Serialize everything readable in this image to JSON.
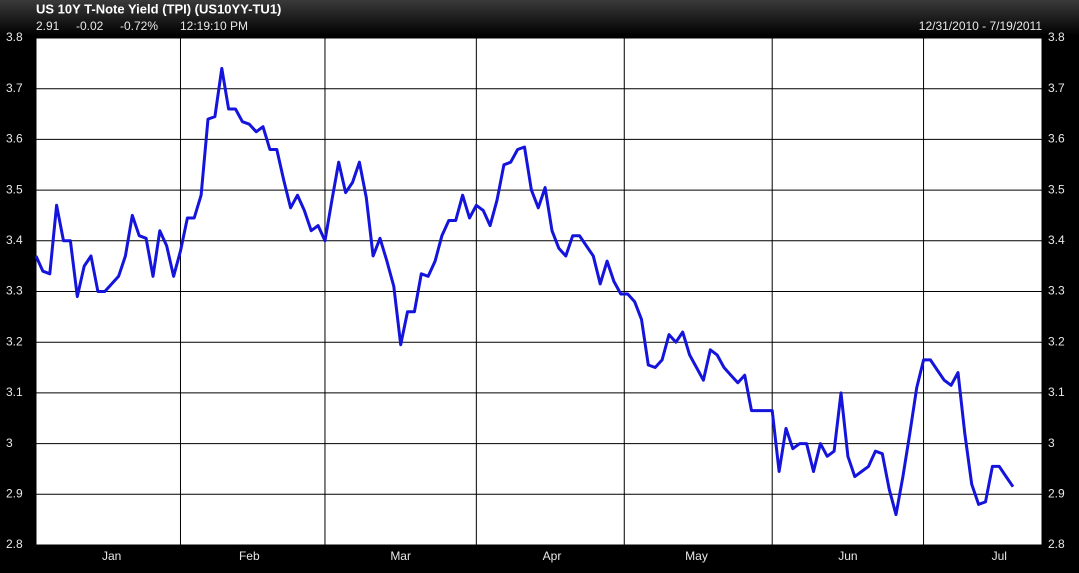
{
  "chart_data": {
    "type": "line",
    "title": "US 10Y T-Note Yield (TPI) (US10YY-TU1)",
    "quote": {
      "last": "2.91",
      "change": "-0.02",
      "pct_change": "-0.72%",
      "time": "12:19:10 PM"
    },
    "date_range": "12/31/2010 - 7/19/2011",
    "categories": [
      null,
      null,
      null,
      null,
      null,
      null,
      null,
      null,
      null,
      null,
      null,
      "Jan",
      null,
      null,
      null,
      null,
      null,
      null,
      null,
      null,
      null,
      null,
      null,
      null,
      null,
      null,
      null,
      null,
      null,
      null,
      null,
      "Feb",
      null,
      null,
      null,
      null,
      null,
      null,
      null,
      null,
      null,
      null,
      null,
      null,
      null,
      null,
      null,
      null,
      null,
      null,
      null,
      null,
      null,
      "Mar",
      null,
      null,
      null,
      null,
      null,
      null,
      null,
      null,
      null,
      null,
      null,
      null,
      null,
      null,
      null,
      null,
      null,
      null,
      null,
      null,
      null,
      "Apr",
      null,
      null,
      null,
      null,
      null,
      null,
      null,
      null,
      null,
      null,
      null,
      null,
      null,
      null,
      null,
      null,
      null,
      null,
      null,
      null,
      "May",
      null,
      null,
      null,
      null,
      null,
      null,
      null,
      null,
      null,
      null,
      null,
      null,
      null,
      null,
      null,
      null,
      null,
      null,
      null,
      null,
      null,
      "Jun",
      null,
      null,
      null,
      null,
      null,
      null,
      null,
      null,
      null,
      null,
      null,
      null,
      null,
      null,
      null,
      null,
      null,
      null,
      null,
      null,
      null,
      "Jul",
      null,
      null
    ],
    "series": [
      {
        "name": "US 10Y T-Note Yield",
        "color": "#1414dc",
        "values": [
          3.37,
          3.34,
          3.335,
          3.47,
          3.4,
          3.4,
          3.29,
          3.35,
          3.37,
          3.3,
          3.3,
          3.315,
          3.33,
          3.37,
          3.45,
          3.41,
          3.405,
          3.33,
          3.42,
          3.39,
          3.33,
          3.38,
          3.445,
          3.445,
          3.49,
          3.64,
          3.645,
          3.74,
          3.66,
          3.66,
          3.635,
          3.63,
          3.615,
          3.625,
          3.58,
          3.58,
          3.52,
          3.465,
          3.49,
          3.46,
          3.42,
          3.43,
          3.4,
          3.48,
          3.555,
          3.495,
          3.515,
          3.555,
          3.485,
          3.37,
          3.405,
          3.36,
          3.31,
          3.195,
          3.26,
          3.26,
          3.335,
          3.33,
          3.36,
          3.41,
          3.44,
          3.44,
          3.49,
          3.445,
          3.47,
          3.46,
          3.43,
          3.48,
          3.55,
          3.555,
          3.58,
          3.585,
          3.5,
          3.465,
          3.505,
          3.42,
          3.385,
          3.37,
          3.41,
          3.41,
          3.39,
          3.37,
          3.315,
          3.36,
          3.32,
          3.295,
          3.295,
          3.28,
          3.245,
          3.155,
          3.15,
          3.165,
          3.215,
          3.2,
          3.22,
          3.175,
          3.15,
          3.125,
          3.185,
          3.175,
          3.15,
          3.135,
          3.12,
          3.135,
          3.065,
          3.065,
          3.065,
          3.065,
          2.945,
          3.03,
          2.99,
          3.0,
          3.0,
          2.945,
          3.0,
          2.975,
          2.985,
          3.1,
          2.975,
          2.935,
          2.945,
          2.955,
          2.985,
          2.98,
          2.91,
          2.86,
          2.935,
          3.02,
          3.11,
          3.165,
          3.165,
          3.145,
          3.125,
          3.115,
          3.14,
          3.02,
          2.92,
          2.88,
          2.885,
          2.955,
          2.955,
          2.935,
          2.915
        ]
      }
    ],
    "ylim": [
      2.8,
      3.8
    ],
    "yticks": [
      2.8,
      2.9,
      3,
      3.1,
      3.2,
      3.3,
      3.4,
      3.5,
      3.6,
      3.7,
      3.8
    ],
    "grid": true
  }
}
